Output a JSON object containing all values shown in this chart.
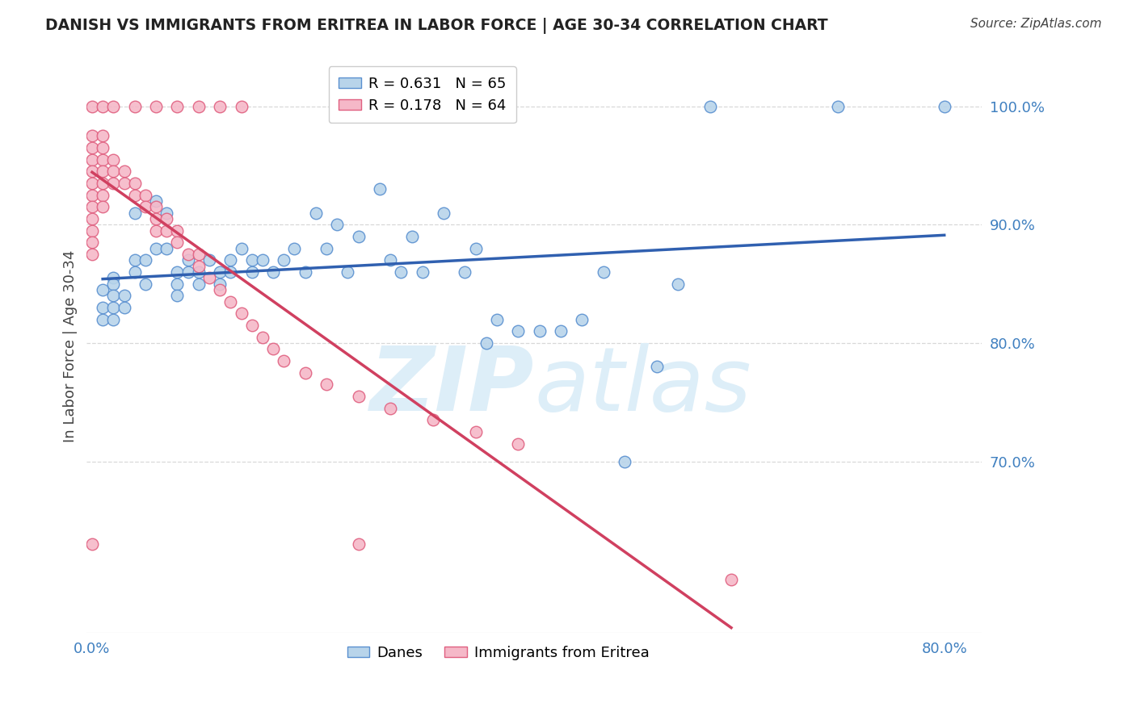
{
  "title": "DANISH VS IMMIGRANTS FROM ERITREA IN LABOR FORCE | AGE 30-34 CORRELATION CHART",
  "source": "Source: ZipAtlas.com",
  "ylabel": "In Labor Force | Age 30-34",
  "danes_color": "#b8d4ea",
  "eritrea_color": "#f5b8c8",
  "danes_edge_color": "#5a90d0",
  "eritrea_edge_color": "#e06080",
  "danes_line_color": "#3060b0",
  "eritrea_line_color": "#d04060",
  "legend_danes": "R = 0.631   N = 65",
  "legend_eritrea": "R = 0.178   N = 64",
  "legend_danes_label": "Danes",
  "legend_eritrea_label": "Immigrants from Eritrea",
  "background_color": "#ffffff",
  "watermark_color": "#ddeef8",
  "right_tick_color": "#4080c0",
  "xtick_color": "#4080c0",
  "title_color": "#222222",
  "ylabel_color": "#444444",
  "source_color": "#444444",
  "grid_color": "#d8d8d8",
  "xlim_min": -0.005,
  "xlim_max": 0.835,
  "ylim_min": 0.555,
  "ylim_max": 1.04,
  "danes_x": [
    0.01,
    0.01,
    0.01,
    0.02,
    0.02,
    0.02,
    0.02,
    0.02,
    0.03,
    0.03,
    0.04,
    0.04,
    0.04,
    0.05,
    0.05,
    0.06,
    0.06,
    0.07,
    0.07,
    0.08,
    0.08,
    0.08,
    0.09,
    0.09,
    0.1,
    0.1,
    0.11,
    0.12,
    0.12,
    0.13,
    0.13,
    0.14,
    0.15,
    0.15,
    0.16,
    0.17,
    0.18,
    0.19,
    0.2,
    0.21,
    0.22,
    0.23,
    0.24,
    0.25,
    0.27,
    0.28,
    0.29,
    0.3,
    0.31,
    0.33,
    0.35,
    0.36,
    0.37,
    0.38,
    0.4,
    0.42,
    0.44,
    0.46,
    0.48,
    0.5,
    0.53,
    0.55,
    0.58,
    0.7,
    0.8
  ],
  "danes_y": [
    0.845,
    0.83,
    0.82,
    0.855,
    0.85,
    0.84,
    0.83,
    0.82,
    0.84,
    0.83,
    0.91,
    0.87,
    0.86,
    0.87,
    0.85,
    0.92,
    0.88,
    0.91,
    0.88,
    0.86,
    0.85,
    0.84,
    0.87,
    0.86,
    0.86,
    0.85,
    0.87,
    0.86,
    0.85,
    0.87,
    0.86,
    0.88,
    0.87,
    0.86,
    0.87,
    0.86,
    0.87,
    0.88,
    0.86,
    0.91,
    0.88,
    0.9,
    0.86,
    0.89,
    0.93,
    0.87,
    0.86,
    0.89,
    0.86,
    0.91,
    0.86,
    0.88,
    0.8,
    0.82,
    0.81,
    0.81,
    0.81,
    0.82,
    0.86,
    0.7,
    0.78,
    0.85,
    1.0,
    1.0,
    1.0
  ],
  "eritrea_x": [
    0.0,
    0.0,
    0.0,
    0.0,
    0.0,
    0.0,
    0.0,
    0.0,
    0.0,
    0.0,
    0.0,
    0.01,
    0.01,
    0.01,
    0.01,
    0.01,
    0.01,
    0.01,
    0.02,
    0.02,
    0.02,
    0.03,
    0.03,
    0.04,
    0.04,
    0.05,
    0.05,
    0.06,
    0.06,
    0.06,
    0.07,
    0.07,
    0.08,
    0.08,
    0.09,
    0.1,
    0.1,
    0.11,
    0.12,
    0.13,
    0.14,
    0.15,
    0.16,
    0.17,
    0.18,
    0.2,
    0.22,
    0.25,
    0.28,
    0.32,
    0.36,
    0.4,
    0.0,
    0.0,
    0.01,
    0.02,
    0.04,
    0.06,
    0.08,
    0.1,
    0.12,
    0.14,
    0.25,
    0.6
  ],
  "eritrea_y": [
    0.975,
    0.965,
    0.955,
    0.945,
    0.935,
    0.925,
    0.915,
    0.905,
    0.895,
    0.885,
    0.875,
    0.975,
    0.965,
    0.955,
    0.945,
    0.935,
    0.925,
    0.915,
    0.955,
    0.945,
    0.935,
    0.945,
    0.935,
    0.935,
    0.925,
    0.925,
    0.915,
    0.915,
    0.905,
    0.895,
    0.905,
    0.895,
    0.895,
    0.885,
    0.875,
    0.875,
    0.865,
    0.855,
    0.845,
    0.835,
    0.825,
    0.815,
    0.805,
    0.795,
    0.785,
    0.775,
    0.765,
    0.755,
    0.745,
    0.735,
    0.725,
    0.715,
    0.63,
    1.0,
    1.0,
    1.0,
    1.0,
    1.0,
    1.0,
    1.0,
    1.0,
    1.0,
    0.63,
    0.6
  ]
}
